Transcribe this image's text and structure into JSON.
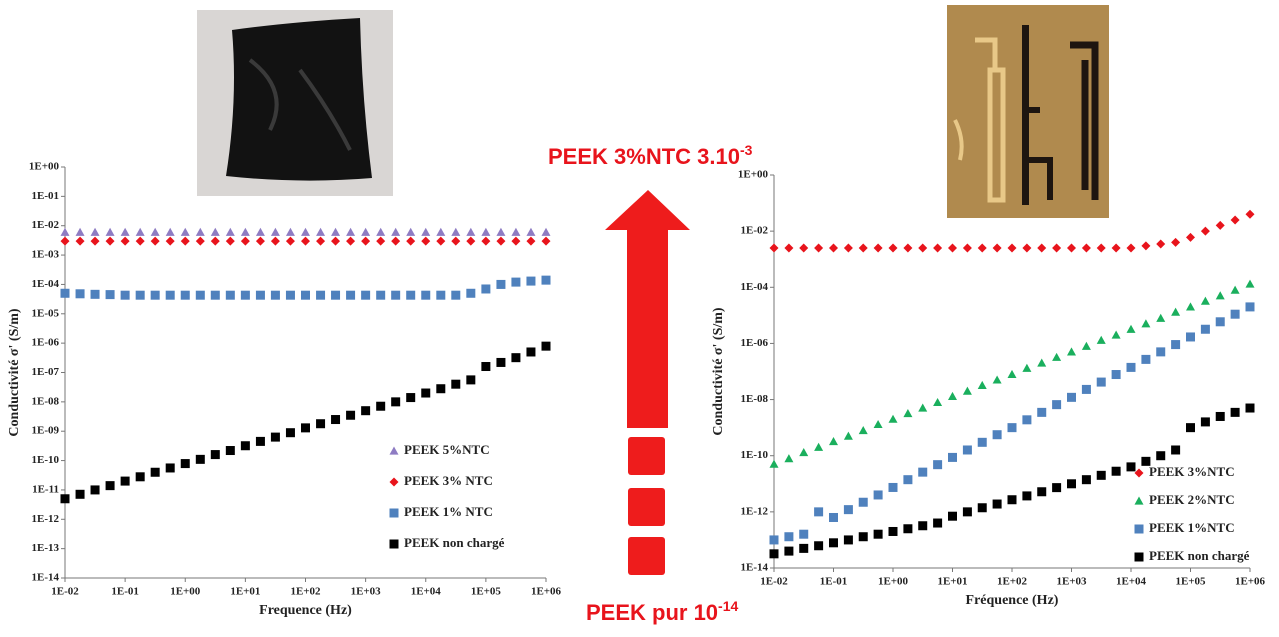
{
  "annotations": {
    "top": {
      "text": "PEEK 3%NTC 3.10",
      "exponent": "-3"
    },
    "bottom": {
      "text": "PEEK pur 10",
      "exponent": "-14"
    }
  },
  "chart_data": [
    {
      "type": "scatter",
      "log_x": true,
      "log_y": true,
      "legend": "lower right",
      "x_label": "Frequence (Hz)",
      "y_label": "Conductivité σ' (S/m)",
      "xlim": [
        0.01,
        1000000
      ],
      "ylim": [
        1e-14,
        1
      ],
      "xticks": [
        {
          "value": 0.01,
          "label": "1E-02"
        },
        {
          "value": 0.1,
          "label": "1E-01"
        },
        {
          "value": 1,
          "label": "1E+00"
        },
        {
          "value": 10,
          "label": "1E+01"
        },
        {
          "value": 100,
          "label": "1E+02"
        },
        {
          "value": 1000,
          "label": "1E+03"
        },
        {
          "value": 10000,
          "label": "1E+04"
        },
        {
          "value": 100000,
          "label": "1E+05"
        },
        {
          "value": 1000000,
          "label": "1E+06"
        }
      ],
      "yticks": [
        {
          "value": 1,
          "label": "1E+00"
        },
        {
          "value": 0.1,
          "label": "1E-01"
        },
        {
          "value": 0.01,
          "label": "1E-02"
        },
        {
          "value": 0.001,
          "label": "1E-03"
        },
        {
          "value": 0.0001,
          "label": "1E-04"
        },
        {
          "value": 1e-05,
          "label": "1E-05"
        },
        {
          "value": 1e-06,
          "label": "1E-06"
        },
        {
          "value": 1e-07,
          "label": "1E-07"
        },
        {
          "value": 1e-08,
          "label": "1E-08"
        },
        {
          "value": 1e-09,
          "label": "1E-09"
        },
        {
          "value": 1e-10,
          "label": "1E-10"
        },
        {
          "value": 1e-11,
          "label": "1E-11"
        },
        {
          "value": 1e-12,
          "label": "1E-12"
        },
        {
          "value": 1e-13,
          "label": "1E-13"
        },
        {
          "value": 1e-14,
          "label": "1E-14"
        }
      ],
      "x": [
        0.01,
        0.0178,
        0.0316,
        0.0562,
        0.1,
        0.178,
        0.316,
        0.562,
        1,
        1.78,
        3.16,
        5.62,
        10,
        17.8,
        31.6,
        56.2,
        100,
        178,
        316,
        562,
        1000,
        1780,
        3160,
        5620,
        10000,
        17800,
        31600,
        56200,
        100000,
        178000,
        316000,
        562000,
        1000000
      ],
      "series": [
        {
          "name": "PEEK 5%NTC",
          "color": "#8e7cc3",
          "marker": "triangle",
          "values": [
            0.006,
            0.006,
            0.006,
            0.006,
            0.006,
            0.006,
            0.006,
            0.006,
            0.006,
            0.006,
            0.006,
            0.006,
            0.006,
            0.006,
            0.006,
            0.006,
            0.006,
            0.006,
            0.006,
            0.006,
            0.006,
            0.006,
            0.006,
            0.006,
            0.006,
            0.006,
            0.006,
            0.006,
            0.006,
            0.006,
            0.006,
            0.006,
            0.006
          ]
        },
        {
          "name": "PEEK 3% NTC",
          "color": "#e8141c",
          "marker": "diamond",
          "values": [
            0.003,
            0.003,
            0.003,
            0.003,
            0.003,
            0.003,
            0.003,
            0.003,
            0.003,
            0.003,
            0.003,
            0.003,
            0.003,
            0.003,
            0.003,
            0.003,
            0.003,
            0.003,
            0.003,
            0.003,
            0.003,
            0.003,
            0.003,
            0.003,
            0.003,
            0.003,
            0.003,
            0.003,
            0.003,
            0.003,
            0.003,
            0.003,
            0.003
          ]
        },
        {
          "name": "PEEK 1% NTC",
          "color": "#4f81bd",
          "marker": "square",
          "values": [
            5e-05,
            4.8e-05,
            4.6e-05,
            4.5e-05,
            4.3e-05,
            4.3e-05,
            4.3e-05,
            4.3e-05,
            4.3e-05,
            4.3e-05,
            4.3e-05,
            4.3e-05,
            4.3e-05,
            4.3e-05,
            4.3e-05,
            4.3e-05,
            4.3e-05,
            4.3e-05,
            4.3e-05,
            4.3e-05,
            4.3e-05,
            4.3e-05,
            4.3e-05,
            4.3e-05,
            4.3e-05,
            4.3e-05,
            4.3e-05,
            5e-05,
            7e-05,
            0.0001,
            0.00012,
            0.00013,
            0.00014
          ]
        },
        {
          "name": "PEEK non chargé",
          "color": "#000000",
          "marker": "square",
          "values": [
            5e-12,
            7.1e-12,
            1e-11,
            1.4e-11,
            2e-11,
            2.8e-11,
            4e-11,
            5.6e-11,
            7.9e-11,
            1.1e-10,
            1.6e-10,
            2.2e-10,
            3.2e-10,
            4.5e-10,
            6.3e-10,
            8.9e-10,
            1.3e-09,
            1.8e-09,
            2.5e-09,
            3.5e-09,
            5e-09,
            7.1e-09,
            1e-08,
            1.4e-08,
            2e-08,
            2.8e-08,
            4e-08,
            5.6e-08,
            1.6e-07,
            2.2e-07,
            3.2e-07,
            5e-07,
            7.9e-07
          ]
        }
      ]
    },
    {
      "type": "scatter",
      "log_x": true,
      "log_y": true,
      "legend": "lower right",
      "x_label": "Fréquence (Hz)",
      "y_label": "Conductivité σ' (S/m)",
      "xlim": [
        0.01,
        1000000
      ],
      "ylim": [
        1e-14,
        1
      ],
      "xticks": [
        {
          "value": 0.01,
          "label": "1E-02"
        },
        {
          "value": 0.1,
          "label": "1E-01"
        },
        {
          "value": 1,
          "label": "1E+00"
        },
        {
          "value": 10,
          "label": "1E+01"
        },
        {
          "value": 100,
          "label": "1E+02"
        },
        {
          "value": 1000,
          "label": "1E+03"
        },
        {
          "value": 10000,
          "label": "1E+04"
        },
        {
          "value": 100000,
          "label": "1E+05"
        },
        {
          "value": 1000000,
          "label": "1E+06"
        }
      ],
      "yticks": [
        {
          "value": 1,
          "label": "1E+00"
        },
        {
          "value": 0.01,
          "label": "1E-02"
        },
        {
          "value": 0.0001,
          "label": "1E-04"
        },
        {
          "value": 1e-06,
          "label": "1E-06"
        },
        {
          "value": 1e-08,
          "label": "1E-08"
        },
        {
          "value": 1e-10,
          "label": "1E-10"
        },
        {
          "value": 1e-12,
          "label": "1E-12"
        },
        {
          "value": 1e-14,
          "label": "1E-14"
        }
      ],
      "x": [
        0.01,
        0.0178,
        0.0316,
        0.0562,
        0.1,
        0.178,
        0.316,
        0.562,
        1,
        1.78,
        3.16,
        5.62,
        10,
        17.8,
        31.6,
        56.2,
        100,
        178,
        316,
        562,
        1000,
        1780,
        3160,
        5620,
        10000,
        17800,
        31600,
        56200,
        100000,
        178000,
        316000,
        562000,
        1000000
      ],
      "series": [
        {
          "name": "PEEK 3%NTC",
          "color": "#e8141c",
          "marker": "diamond",
          "values": [
            0.0025,
            0.0025,
            0.0025,
            0.0025,
            0.0025,
            0.0025,
            0.0025,
            0.0025,
            0.0025,
            0.0025,
            0.0025,
            0.0025,
            0.0025,
            0.0025,
            0.0025,
            0.0025,
            0.0025,
            0.0025,
            0.0025,
            0.0025,
            0.0025,
            0.0025,
            0.0025,
            0.0025,
            0.0025,
            0.003,
            0.0035,
            0.004,
            0.006,
            0.01,
            0.016,
            0.025,
            0.04
          ]
        },
        {
          "name": "PEEK 2%NTC",
          "color": "#1aaf5d",
          "marker": "triangle",
          "values": [
            5e-11,
            7.9e-11,
            1.3e-10,
            2e-10,
            3.2e-10,
            5e-10,
            7.9e-10,
            1.3e-09,
            2e-09,
            3.2e-09,
            5e-09,
            7.9e-09,
            1.3e-08,
            2e-08,
            3.2e-08,
            5e-08,
            7.9e-08,
            1.3e-07,
            2e-07,
            3.2e-07,
            5e-07,
            7.9e-07,
            1.3e-06,
            2e-06,
            3.2e-06,
            5e-06,
            7.9e-06,
            1.3e-05,
            2e-05,
            3.2e-05,
            5e-05,
            7.9e-05,
            0.00013
          ]
        },
        {
          "name": "PEEK 1%NTC",
          "color": "#4f81bd",
          "marker": "square",
          "values": [
            1e-13,
            1.3e-13,
            1.6e-13,
            1e-12,
            6.3e-13,
            1.2e-12,
            2.2e-12,
            4e-12,
            7.4e-12,
            1.4e-11,
            2.6e-11,
            4.8e-11,
            8.7e-11,
            1.6e-10,
            3e-10,
            5.6e-10,
            1e-09,
            1.9e-09,
            3.5e-09,
            6.6e-09,
            1.2e-08,
            2.3e-08,
            4.2e-08,
            7.8e-08,
            1.4e-07,
            2.7e-07,
            5e-07,
            9.1e-07,
            1.7e-06,
            3.2e-06,
            5.9e-06,
            1.1e-05,
            2e-05
          ]
        },
        {
          "name": "PEEK non chargé",
          "color": "#000000",
          "marker": "square",
          "values": [
            3.2e-14,
            4e-14,
            5e-14,
            6.2e-14,
            7.9e-14,
            1e-13,
            1.3e-13,
            1.6e-13,
            2e-13,
            2.5e-13,
            3.2e-13,
            4e-13,
            7e-13,
            1e-12,
            1.4e-12,
            1.9e-12,
            2.7e-12,
            3.7e-12,
            5.2e-12,
            7.3e-12,
            1e-11,
            1.4e-11,
            2e-11,
            2.8e-11,
            4e-11,
            6.3e-11,
            1e-10,
            1.6e-10,
            1e-09,
            1.6e-09,
            2.5e-09,
            3.5e-09,
            5e-09
          ]
        }
      ]
    }
  ]
}
